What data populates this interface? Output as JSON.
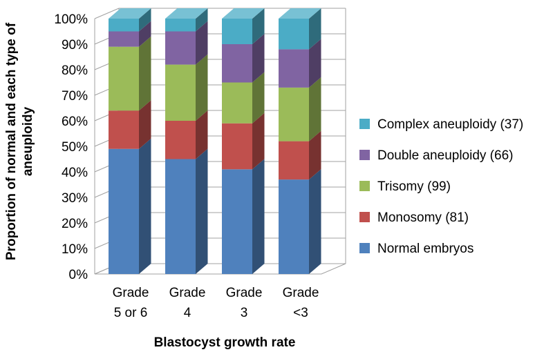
{
  "chart_data": {
    "type": "bar",
    "stacked": true,
    "three_d": true,
    "title": "",
    "xlabel": "Blastocyst growth rate",
    "ylabel_lines": [
      "Proportion of normal and each type of",
      "aneuploidy"
    ],
    "ylim": [
      0,
      100
    ],
    "y_ticks": [
      "0%",
      "10%",
      "20%",
      "30%",
      "40%",
      "50%",
      "60%",
      "70%",
      "80%",
      "90%",
      "100%"
    ],
    "grid": true,
    "legend_position": "right",
    "categories": [
      [
        "Grade",
        "5 or 6"
      ],
      [
        "Grade",
        "4"
      ],
      [
        "Grade",
        "3"
      ],
      [
        "Grade",
        "<3"
      ]
    ],
    "series": [
      {
        "name": "Normal embryos",
        "color": "#4f81bd",
        "values": [
          49,
          45,
          41,
          37
        ]
      },
      {
        "name": "Monosomy (81)",
        "color": "#c0504d",
        "values": [
          15,
          15,
          18,
          15
        ]
      },
      {
        "name": "Trisomy (99)",
        "color": "#9bbb59",
        "values": [
          25,
          22,
          16,
          21
        ]
      },
      {
        "name": "Double aneuploidy (66)",
        "color": "#8064a2",
        "values": [
          6,
          13,
          15,
          15
        ]
      },
      {
        "name": "Complex aneuploidy (37)",
        "color": "#4bacc6",
        "values": [
          5,
          5,
          10,
          12
        ]
      }
    ]
  }
}
